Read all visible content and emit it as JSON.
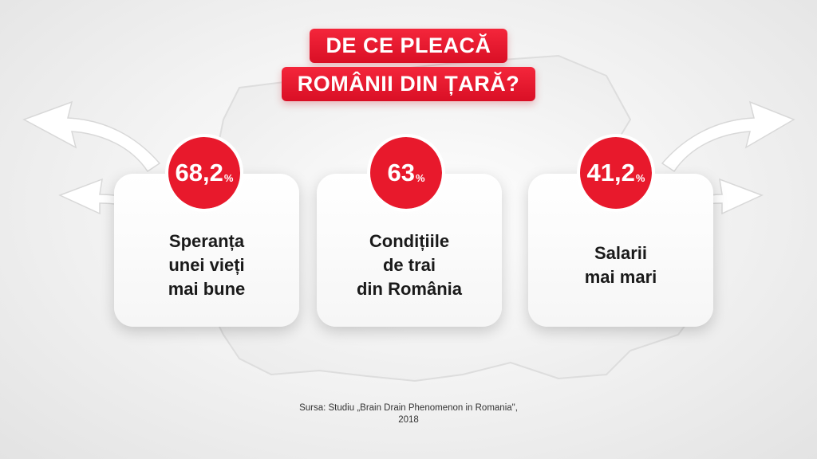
{
  "title": {
    "line1": "DE CE PLEACĂ",
    "line2": "ROMÂNII DIN ȚARĂ?"
  },
  "colors": {
    "accent": "#e8192c",
    "card": "#ffffff",
    "text": "#1a1a1a"
  },
  "chart_data": {
    "type": "bar",
    "unit": "%",
    "items": [
      {
        "value_label": "68,2",
        "unit": "%",
        "value": 68.2,
        "label_lines": [
          "Speranța",
          "unei vieți",
          "mai bune"
        ]
      },
      {
        "value_label": "63",
        "unit": "%",
        "value": 63,
        "label_lines": [
          "Condițiile",
          "de trai",
          "din România"
        ]
      },
      {
        "value_label": "41,2",
        "unit": "%",
        "value": 41.2,
        "label_lines": [
          "Salarii",
          "mai mari"
        ]
      }
    ]
  },
  "source": {
    "line1": "Sursa: Studiu „Brain Drain Phenomenon in Romania\",",
    "line2": "2018"
  }
}
